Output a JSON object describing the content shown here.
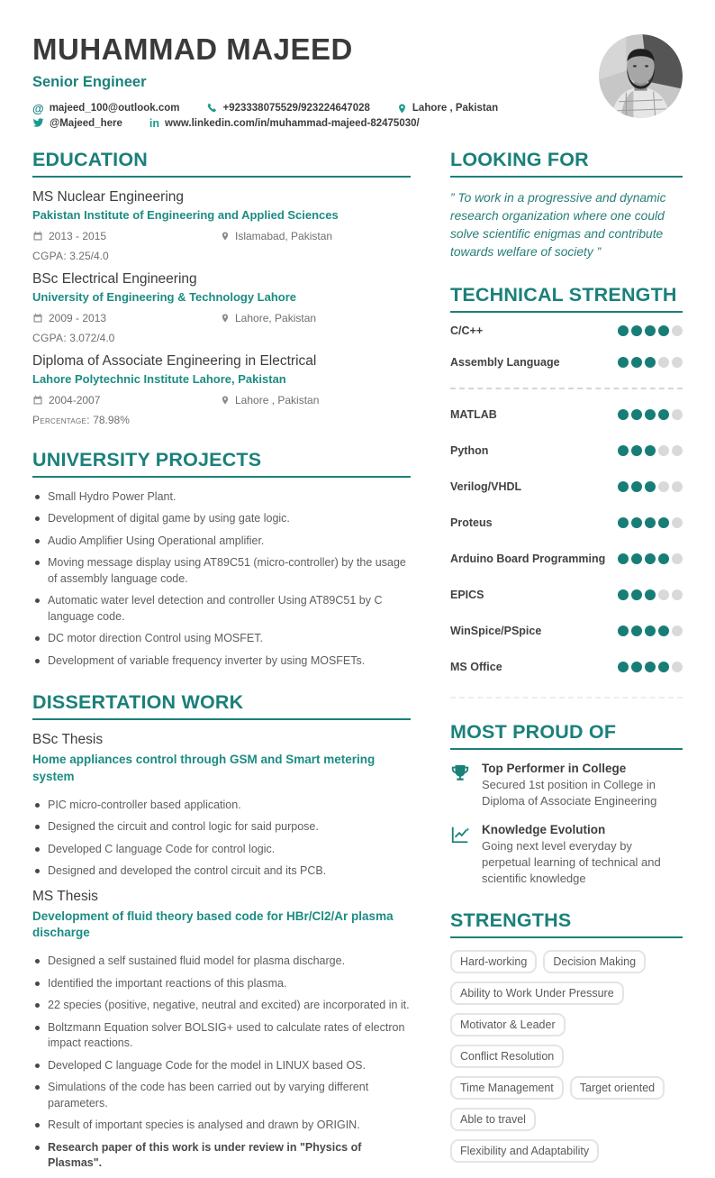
{
  "accent": "#1b807a",
  "dot_filled_color": "#177d76",
  "dot_empty_color": "#d9d9d9",
  "header": {
    "name": "MUHAMMAD MAJEED",
    "title": "Senior Engineer",
    "contacts": {
      "email": {
        "icon": "at-icon",
        "text": "majeed_100@outlook.com"
      },
      "phone": {
        "icon": "phone-icon",
        "text": "+923338075529/923224647028"
      },
      "location": {
        "icon": "pin-icon",
        "text": "Lahore , Pakistan"
      },
      "twitter": {
        "icon": "twitter-icon",
        "text": "@Majeed_here"
      },
      "linkedin": {
        "icon": "linkedin-icon",
        "text": "www.linkedin.com/in/muhammad-majeed-82475030/"
      }
    },
    "photo": "grayscale-portrait"
  },
  "education": {
    "heading": "EDUCATION",
    "items": [
      {
        "degree": "MS Nuclear Engineering",
        "school": "Pakistan Institute of Engineering and Applied Sciences",
        "dates": "2013 - 2015",
        "location": "Islamabad, Pakistan",
        "score_label": "CGPA:",
        "score": "3.25/4.0"
      },
      {
        "degree": "BSc Electrical Engineering",
        "school": "University of Engineering & Technology Lahore",
        "dates": "2009 - 2013",
        "location": "Lahore, Pakistan",
        "score_label": "CGPA:",
        "score": "3.072/4.0"
      },
      {
        "degree": "Diploma of Associate Engineering in Electrical",
        "school": "Lahore Polytechnic Institute Lahore, Pakistan",
        "dates": "2004-2007",
        "location": "Lahore , Pakistan",
        "score_label": "Percentage:",
        "score": "78.98%"
      }
    ]
  },
  "university_projects": {
    "heading": "UNIVERSITY PROJECTS",
    "bullets": [
      "Small Hydro Power Plant.",
      "Development of digital game by using gate logic.",
      "Audio Amplifier Using Operational amplifier.",
      "Moving message display using AT89C51 (micro-controller) by the usage of assembly language code.",
      "Automatic water level detection and controller Using AT89C51 by C language code.",
      "DC motor direction Control using MOSFET.",
      "Development of variable frequency inverter by using MOSFETs."
    ]
  },
  "dissertation": {
    "heading": "DISSERTATION WORK",
    "bsc": {
      "title": "BSc Thesis",
      "subtitle": "Home appliances control through GSM and Smart metering system",
      "bullets": [
        "PIC micro-controller based application.",
        "Designed the circuit and control logic for said purpose.",
        "Developed C language Code for control logic.",
        "Designed and developed the control circuit and its PCB."
      ]
    },
    "ms": {
      "title": "MS Thesis",
      "subtitle": "Development of fluid theory based code for HBr/Cl2/Ar plasma discharge",
      "bullets": [
        "Designed a self sustained fluid model for plasma discharge.",
        "Identified the important reactions of this plasma.",
        "22 species (positive, negative, neutral and excited) are incorporated in it.",
        "Boltzmann Equation solver BOLSIG+ used to calculate rates of electron impact reactions.",
        "Developed C language Code for the model in LINUX based OS.",
        "Simulations of the code has been carried out by varying different parameters.",
        "Result of important species is analysed and drawn by ORIGIN.",
        "Research paper of this work is under review in \"Physics of Plasmas\"."
      ]
    }
  },
  "looking_for": {
    "heading": "LOOKING FOR",
    "quote": "” To work in a progressive and dynamic research organization where one could solve scientific enigmas and contribute towards welfare of society ”"
  },
  "technical_strength": {
    "heading": "TECHNICAL STRENGTH",
    "max_level": 5,
    "groups": [
      [
        {
          "name": "C/C++",
          "level": 4
        },
        {
          "name": "Assembly Language",
          "level": 3
        }
      ],
      [
        {
          "name": "MATLAB",
          "level": 4
        },
        {
          "name": "Python",
          "level": 3
        },
        {
          "name": "Verilog/VHDL",
          "level": 3
        },
        {
          "name": "Proteus",
          "level": 4
        },
        {
          "name": "Arduino Board Programming",
          "level": 4
        },
        {
          "name": "EPICS",
          "level": 3
        },
        {
          "name": "WinSpice/PSpice",
          "level": 4
        },
        {
          "name": "MS Office",
          "level": 4
        }
      ]
    ]
  },
  "most_proud": {
    "heading": "MOST PROUD OF",
    "items": [
      {
        "icon": "trophy-icon",
        "title": "Top Performer in College",
        "desc": "Secured 1st position in College in Diploma of Associate Engineering"
      },
      {
        "icon": "chart-up-icon",
        "title": "Knowledge Evolution",
        "desc": "Going next level everyday by perpetual learning of technical and scientific knowledge"
      }
    ]
  },
  "strengths": {
    "heading": "STRENGTHS",
    "tags": [
      "Hard-working",
      "Decision Making",
      "Ability to Work Under Pressure",
      "Motivator & Leader",
      "Conflict Resolution",
      "Time Management",
      "Target oriented",
      "Able to travel",
      "Flexibility and Adaptability"
    ]
  }
}
